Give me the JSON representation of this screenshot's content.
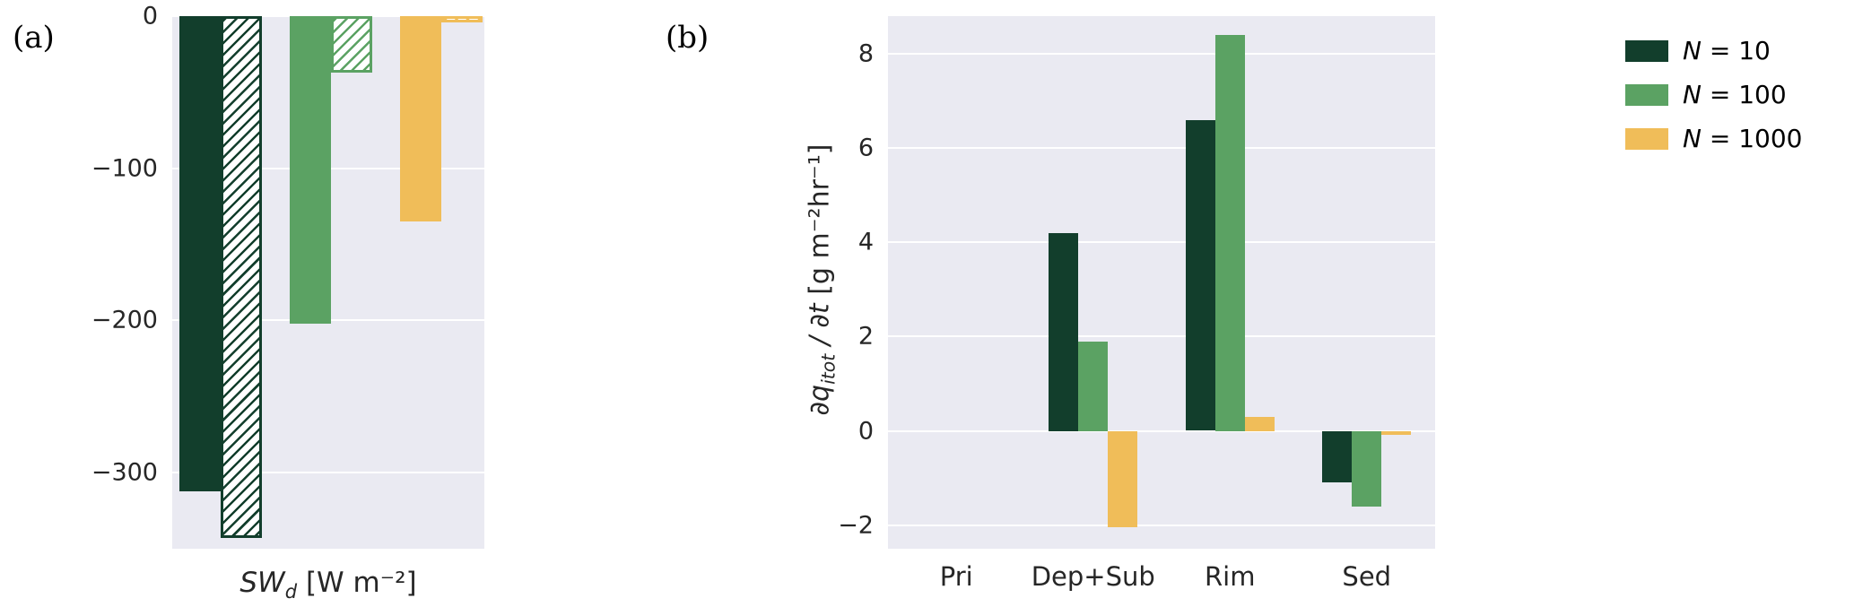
{
  "figure": {
    "background": "#ffffff",
    "plot_background": "#eaeaf2",
    "grid_color": "#ffffff",
    "tick_color": "#262626"
  },
  "legend": {
    "position": "top-right",
    "items": [
      {
        "label": "N = 10",
        "color": "#123e2c"
      },
      {
        "label": "N = 100",
        "color": "#5ba263"
      },
      {
        "label": "N = 1000",
        "color": "#f0bd59"
      }
    ]
  },
  "chart_data": [
    {
      "id": "a",
      "type": "bar",
      "panel_label": "(a)",
      "xlabel_parts": {
        "main": "SW",
        "sub": "d",
        "unit": " [W m⁻²]"
      },
      "ylim": [
        -350,
        0
      ],
      "yticks": [
        {
          "label": "0",
          "value": 0
        },
        {
          "label": "−100",
          "value": -100
        },
        {
          "label": "−200",
          "value": -200
        },
        {
          "label": "−300",
          "value": -300
        }
      ],
      "grid": true,
      "legend_shown": false,
      "hatch_style": "diagonal",
      "series": [
        {
          "name": "N = 10",
          "color": "#123e2c",
          "solid_value": -312,
          "hatched_value": -343
        },
        {
          "name": "N = 100",
          "color": "#5ba263",
          "solid_value": -202,
          "hatched_value": -37
        },
        {
          "name": "N = 1000",
          "color": "#f0bd59",
          "solid_value": -135,
          "hatched_value": -4
        }
      ]
    },
    {
      "id": "b",
      "type": "bar",
      "panel_label": "(b)",
      "ylabel_parts": {
        "p1": "∂q",
        "sub": "itot",
        "p2": " / ∂t ",
        "unit": " [g m⁻²hr⁻¹]"
      },
      "categories": [
        "Pri",
        "Dep+Sub",
        "Rim",
        "Sed"
      ],
      "ylim": [
        -2.5,
        8.8
      ],
      "yticks": [
        {
          "label": "8",
          "value": 8
        },
        {
          "label": "6",
          "value": 6
        },
        {
          "label": "4",
          "value": 4
        },
        {
          "label": "2",
          "value": 2
        },
        {
          "label": "0",
          "value": 0
        },
        {
          "label": "−2",
          "value": -2
        }
      ],
      "grid": true,
      "series": [
        {
          "name": "N = 10",
          "color": "#123e2c",
          "values": [
            0,
            4.2,
            6.6,
            -1.1
          ]
        },
        {
          "name": "N = 100",
          "color": "#5ba263",
          "values": [
            0,
            1.9,
            8.4,
            -1.6
          ]
        },
        {
          "name": "N = 1000",
          "color": "#f0bd59",
          "values": [
            0,
            -2.05,
            0.3,
            -0.08
          ]
        }
      ]
    }
  ]
}
